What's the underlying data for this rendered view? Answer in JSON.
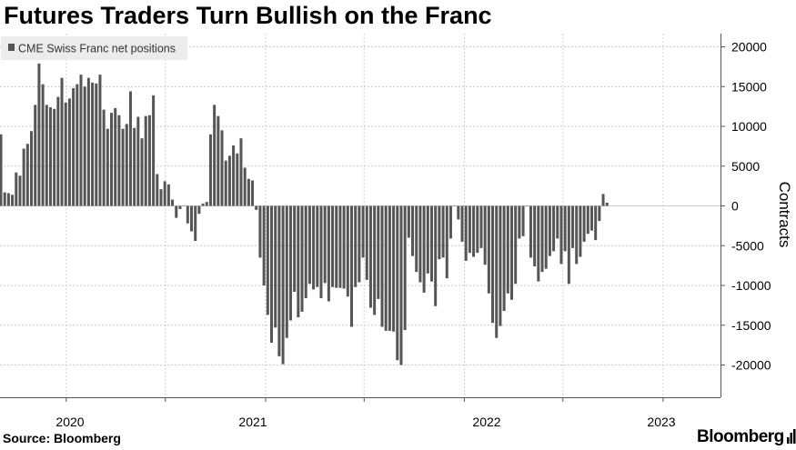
{
  "title": "Futures Traders Turn Bullish on the Franc",
  "source": "Source: Bloomberg",
  "logo": "Bloomberg",
  "chart_data": {
    "type": "bar",
    "title": "",
    "xlabel": "",
    "ylabel": "Contracts",
    "ylim": [
      -24000,
      22000
    ],
    "yticks": [
      20000,
      15000,
      10000,
      5000,
      0,
      -5000,
      -10000,
      -15000,
      -20000
    ],
    "grid": true,
    "legend_position": "top-left",
    "series": [
      {
        "name": "CME Swiss Franc net positions",
        "color": "#555555",
        "start_week": "2019-09-03",
        "values": [
          9000,
          1700,
          1600,
          1400,
          4200,
          3800,
          7200,
          7800,
          9400,
          12700,
          17900,
          15300,
          12700,
          12400,
          12200,
          13700,
          16100,
          13000,
          13500,
          14800,
          15300,
          16500,
          15000,
          16100,
          15500,
          15400,
          16500,
          12100,
          9700,
          11700,
          12300,
          11400,
          9700,
          10300,
          14400,
          9800,
          11200,
          8500,
          11300,
          11400,
          13900,
          4000,
          2100,
          3100,
          2700,
          800,
          -1500,
          -400,
          0,
          -2200,
          -3200,
          -4400,
          -1000,
          300,
          500,
          9000,
          12700,
          11300,
          9500,
          5700,
          6300,
          7600,
          6600,
          8500,
          4800,
          3400,
          3200,
          -500,
          -6500,
          -10000,
          -13700,
          -17200,
          -15300,
          -18900,
          -19900,
          -16600,
          -14400,
          -10800,
          -14000,
          -13300,
          -11600,
          -9800,
          -10500,
          -10200,
          -11600,
          -9700,
          -12000,
          -10200,
          -10300,
          -10300,
          -10400,
          -11400,
          -15200,
          -10200,
          -9600,
          -6500,
          -9300,
          -12800,
          -13700,
          -11700,
          -15200,
          -15700,
          -15700,
          -15800,
          -19400,
          -20000,
          -15600,
          -4000,
          -6300,
          -8300,
          -9600,
          -10900,
          -8500,
          -9500,
          -12600,
          -6700,
          -6500,
          -9100,
          -4100,
          0,
          -1700,
          -4500,
          -6900,
          -5900,
          -6400,
          -5900,
          -5300,
          -7400,
          -11000,
          -14700,
          -16600,
          -15100,
          -13200,
          -11000,
          -11800,
          -9800,
          -4100,
          -3800,
          0,
          -6500,
          -7600,
          -9500,
          -8300,
          -7900,
          -6300,
          -5700,
          -4100,
          -7300,
          -5700,
          -9800,
          -5300,
          -7300,
          -6400,
          -4500,
          -3500,
          -3100,
          -4300,
          -1900,
          1500,
          400
        ]
      }
    ],
    "x_tick_labels": [
      "2020",
      "2021",
      "2022",
      "2023"
    ],
    "x_tick_dates": [
      "2020-01-01",
      "2021-01-01",
      "2022-01-01",
      "2023-01-01"
    ]
  }
}
